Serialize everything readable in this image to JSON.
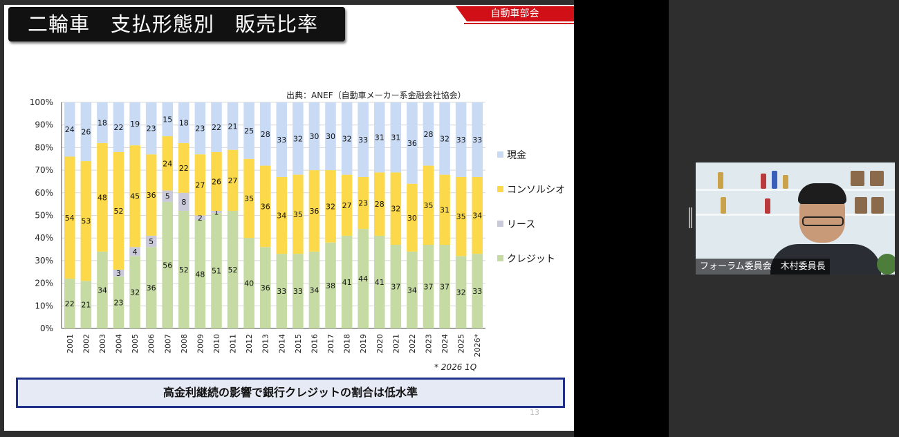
{
  "slide": {
    "title": "二輪車　支払形態別　販売比率",
    "department": "自動車部会",
    "source": "出典：ANEF（自動車メーカー系金融会社協会）",
    "footnote": "* 2026 1Q",
    "message": "高金利継続の影響で銀行クレジットの割合は低水準",
    "page_number": "13"
  },
  "chart_data": {
    "type": "bar",
    "stacked": true,
    "categories": [
      "2001",
      "2002",
      "2003",
      "2004",
      "2005",
      "2006",
      "2007",
      "2008",
      "2009",
      "2010",
      "2011",
      "2012",
      "2013",
      "2014",
      "2015",
      "2016",
      "2017",
      "2018",
      "2019",
      "2020",
      "2021",
      "2022",
      "2023",
      "2024",
      "2025",
      "2026*"
    ],
    "series": [
      {
        "name": "クレジット",
        "color": "#c5dba3",
        "values": [
          22,
          21,
          34,
          23,
          32,
          36,
          56,
          52,
          48,
          51,
          52,
          40,
          36,
          33,
          33,
          34,
          38,
          41,
          44,
          41,
          37,
          34,
          37,
          37,
          32,
          33
        ]
      },
      {
        "name": "リース",
        "color": "#c9c9d9",
        "values": [
          0,
          0,
          0,
          3,
          4,
          5,
          5,
          8,
          2,
          1,
          0,
          0,
          0,
          0,
          0,
          0,
          0,
          0,
          0,
          0,
          0,
          0,
          0,
          0,
          0,
          0
        ]
      },
      {
        "name": "コンソルシオ",
        "color": "#fbd94a",
        "values": [
          54,
          53,
          48,
          52,
          45,
          36,
          24,
          22,
          27,
          26,
          27,
          35,
          36,
          34,
          35,
          36,
          32,
          27,
          23,
          28,
          32,
          30,
          35,
          31,
          35,
          34
        ]
      },
      {
        "name": "現金",
        "color": "#c9daf4",
        "values": [
          24,
          26,
          18,
          22,
          19,
          23,
          15,
          18,
          23,
          22,
          21,
          25,
          28,
          33,
          32,
          30,
          30,
          32,
          33,
          31,
          31,
          36,
          28,
          32,
          33,
          33
        ]
      }
    ],
    "legend_order": [
      "現金",
      "コンソルシオ",
      "リース",
      "クレジット"
    ],
    "legend_position": "right",
    "y_ticks": [
      "0%",
      "10%",
      "20%",
      "30%",
      "40%",
      "50%",
      "60%",
      "70%",
      "80%",
      "90%",
      "100%"
    ],
    "ylim": [
      0,
      100
    ],
    "grid": true
  },
  "video": {
    "participant_label": "フォーラム委員会　木村委員長"
  }
}
